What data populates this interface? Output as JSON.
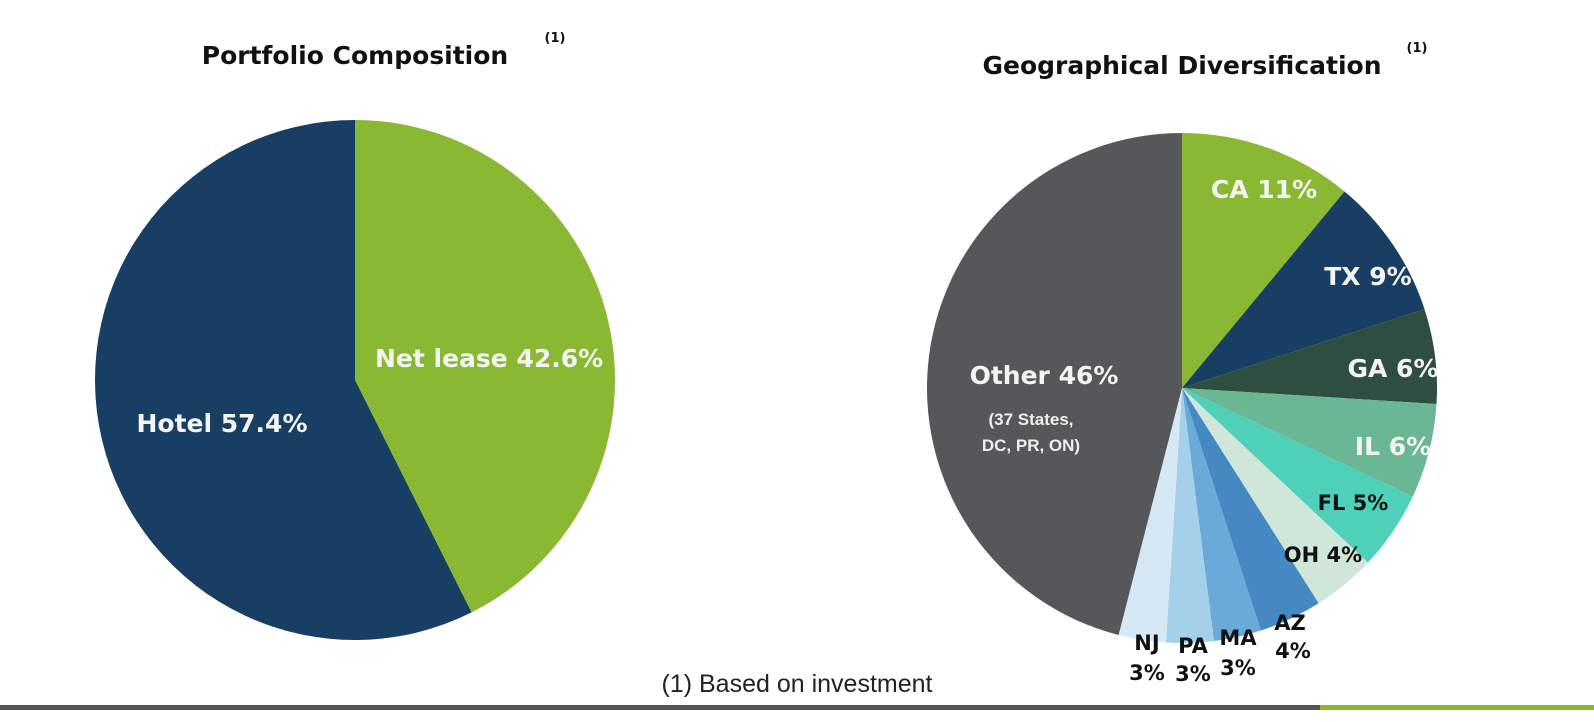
{
  "footnote": "(1) Based on investment",
  "chart_data": [
    {
      "type": "pie",
      "title": "Portfolio Composition",
      "title_note": "(1)",
      "slices": [
        {
          "label": "Net lease",
          "text": "Net lease 42.6%",
          "value": 42.6,
          "color": "#8ab833"
        },
        {
          "label": "Hotel",
          "text": "Hotel 57.4%",
          "value": 57.4,
          "color": "#183f63"
        }
      ]
    },
    {
      "type": "pie",
      "title": "Geographical Diversification",
      "title_note": "(1)",
      "slices": [
        {
          "label": "CA",
          "text": "CA 11%",
          "value": 11,
          "color": "#8ab833"
        },
        {
          "label": "TX",
          "text": "TX 9%",
          "value": 9,
          "color": "#183f63"
        },
        {
          "label": "GA",
          "text": "GA 6%",
          "value": 6,
          "color": "#2e4e3f"
        },
        {
          "label": "IL",
          "text": "IL 6%",
          "value": 6,
          "color": "#6ab795"
        },
        {
          "label": "FL",
          "text": "FL 5%",
          "value": 5,
          "color": "#4fd0b8"
        },
        {
          "label": "OH",
          "text": "OH 4%",
          "value": 4,
          "color": "#cfe6d8"
        },
        {
          "label": "AZ",
          "text": "AZ 4%",
          "value": 4,
          "color": "#4589c2"
        },
        {
          "label": "MA",
          "text": "MA 3%",
          "value": 3,
          "color": "#6aaad8"
        },
        {
          "label": "PA",
          "text": "PA 3%",
          "value": 3,
          "color": "#a5d0ea"
        },
        {
          "label": "NJ",
          "text": "NJ 3%",
          "value": 3,
          "color": "#d6e8f5"
        },
        {
          "label": "Other",
          "text": "Other 46%",
          "sub_lines": [
            "(37 States,",
            "DC, PR, ON)"
          ],
          "value": 46,
          "color": "#565759"
        }
      ]
    }
  ]
}
